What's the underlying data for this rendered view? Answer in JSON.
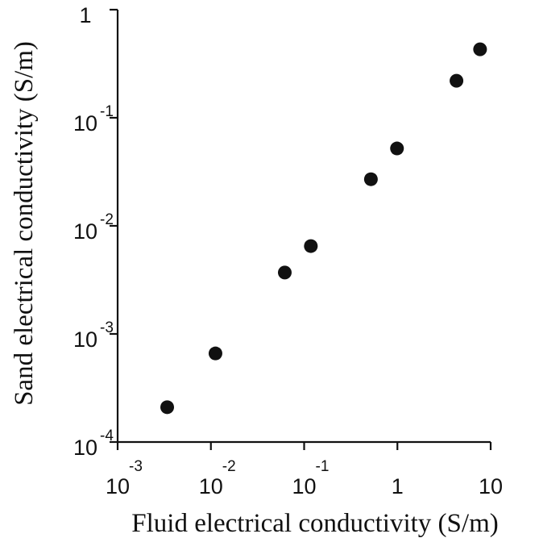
{
  "chart_data": {
    "type": "scatter",
    "xscale": "log",
    "yscale": "log",
    "xlabel": "Fluid electrical conductivity (S/m)",
    "ylabel": "Sand electrical conductivity (S/m)",
    "xlim": [
      0.001,
      10
    ],
    "ylim": [
      0.0001,
      1
    ],
    "grid": false,
    "xticks": [
      {
        "value": 0.001,
        "base": "10",
        "exp": "-3"
      },
      {
        "value": 0.01,
        "base": "10",
        "exp": "-2"
      },
      {
        "value": 0.1,
        "base": "10",
        "exp": "-1"
      },
      {
        "value": 1,
        "base": "1",
        "exp": ""
      },
      {
        "value": 10,
        "base": "10",
        "exp": ""
      }
    ],
    "yticks": [
      {
        "value": 0.0001,
        "base": "10",
        "exp": "-4"
      },
      {
        "value": 0.001,
        "base": "10",
        "exp": "-3"
      },
      {
        "value": 0.01,
        "base": "10",
        "exp": "-2"
      },
      {
        "value": 0.1,
        "base": "10",
        "exp": "-1"
      },
      {
        "value": 1,
        "base": "1",
        "exp": ""
      }
    ],
    "points": [
      {
        "x": 0.0034,
        "y": 0.00021
      },
      {
        "x": 0.0112,
        "y": 0.00066
      },
      {
        "x": 0.062,
        "y": 0.0037
      },
      {
        "x": 0.118,
        "y": 0.0065
      },
      {
        "x": 0.52,
        "y": 0.027
      },
      {
        "x": 0.99,
        "y": 0.052
      },
      {
        "x": 4.3,
        "y": 0.22
      },
      {
        "x": 7.7,
        "y": 0.43
      }
    ],
    "marker_color": "#111111"
  }
}
